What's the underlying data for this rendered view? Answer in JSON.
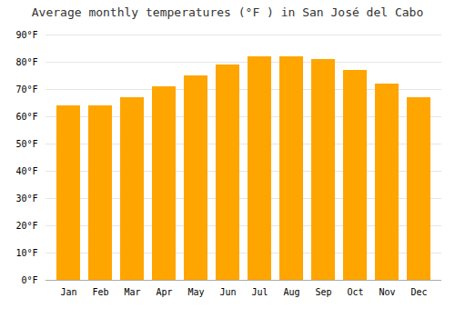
{
  "chart_data": {
    "type": "bar",
    "title": "Average monthly temperatures (°F ) in San José del Cabo",
    "categories": [
      "Jan",
      "Feb",
      "Mar",
      "Apr",
      "May",
      "Jun",
      "Jul",
      "Aug",
      "Sep",
      "Oct",
      "Nov",
      "Dec"
    ],
    "values": [
      64,
      64,
      67,
      71,
      75,
      79,
      82,
      82,
      81,
      77,
      72,
      67
    ],
    "color": "#FFA500",
    "ylim": [
      0,
      90
    ],
    "yticks": [
      {
        "value": 0,
        "label": "0°F"
      },
      {
        "value": 10,
        "label": "10°F"
      },
      {
        "value": 20,
        "label": "20°F"
      },
      {
        "value": 30,
        "label": "30°F"
      },
      {
        "value": 40,
        "label": "40°F"
      },
      {
        "value": 50,
        "label": "50°F"
      },
      {
        "value": 60,
        "label": "60°F"
      },
      {
        "value": 70,
        "label": "70°F"
      },
      {
        "value": 80,
        "label": "80°F"
      },
      {
        "value": 90,
        "label": "90°F"
      }
    ],
    "grid": true
  }
}
